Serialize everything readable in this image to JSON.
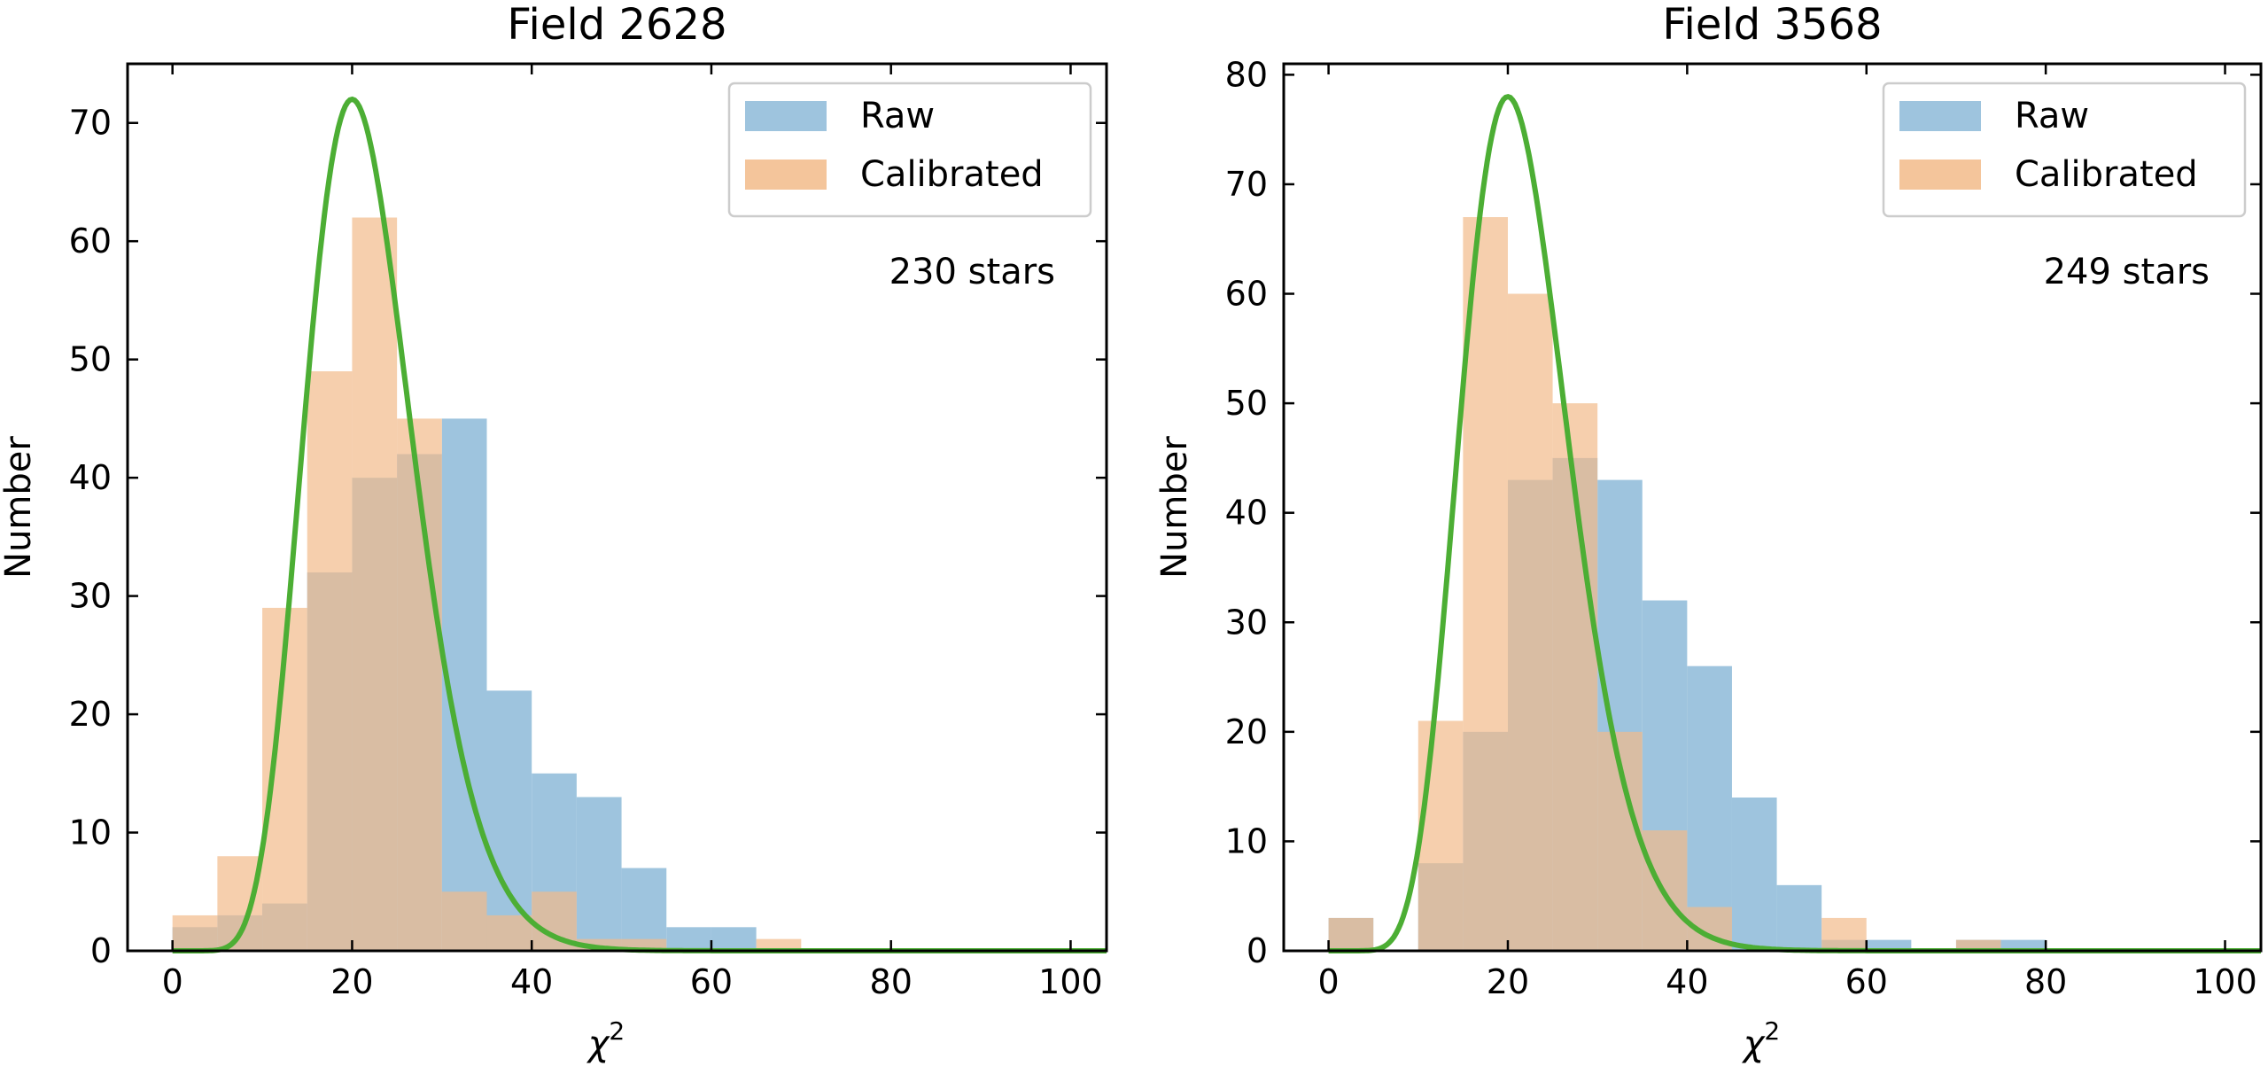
{
  "chart_data": [
    {
      "type": "bar",
      "title": "Field 2628",
      "xlabel": "χ",
      "xlabel_sup": "2",
      "ylabel": "Number",
      "xlim": [
        -5,
        104
      ],
      "ylim": [
        0,
        75
      ],
      "xticks": [
        0,
        20,
        40,
        60,
        80,
        100
      ],
      "yticks": [
        0,
        10,
        20,
        30,
        40,
        50,
        60,
        70
      ],
      "bin_edges": [
        0,
        5,
        10,
        15,
        20,
        25,
        30,
        35,
        40,
        45,
        50,
        55,
        60,
        65,
        70
      ],
      "annotation": "230 stars",
      "legend_position": "upper right",
      "series": [
        {
          "name": "Raw",
          "color": "#9ec4de",
          "values": [
            2,
            3,
            4,
            32,
            40,
            42,
            45,
            22,
            15,
            13,
            7,
            2,
            2,
            0
          ]
        },
        {
          "name": "Calibrated",
          "color": "#f2bb8a",
          "values": [
            3,
            8,
            29,
            49,
            62,
            45,
            5,
            3,
            5,
            1,
            1,
            0,
            0,
            1
          ]
        }
      ],
      "curve": {
        "color": "#4cae34",
        "peak_x": 20,
        "peak_y": 72
      }
    },
    {
      "type": "bar",
      "title": "Field 3568",
      "xlabel": "χ",
      "xlabel_sup": "2",
      "ylabel": "Number",
      "xlim": [
        -5,
        104
      ],
      "ylim": [
        0,
        81
      ],
      "xticks": [
        0,
        20,
        40,
        60,
        80,
        100
      ],
      "yticks": [
        0,
        10,
        20,
        30,
        40,
        50,
        60,
        70,
        80
      ],
      "bin_edges": [
        0,
        5,
        10,
        15,
        20,
        25,
        30,
        35,
        40,
        45,
        50,
        55,
        60,
        65,
        70,
        75,
        80
      ],
      "annotation": "249 stars",
      "legend_position": "upper right",
      "series": [
        {
          "name": "Raw",
          "color": "#9ec4de",
          "values": [
            3,
            0,
            8,
            20,
            43,
            45,
            43,
            32,
            26,
            14,
            6,
            1,
            1,
            0,
            1,
            1
          ]
        },
        {
          "name": "Calibrated",
          "color": "#f2bb8a",
          "values": [
            3,
            0,
            21,
            67,
            60,
            50,
            20,
            11,
            4,
            0,
            0,
            3,
            0,
            0,
            1,
            0
          ]
        }
      ],
      "curve": {
        "color": "#4cae34",
        "peak_x": 20,
        "peak_y": 78
      }
    }
  ]
}
